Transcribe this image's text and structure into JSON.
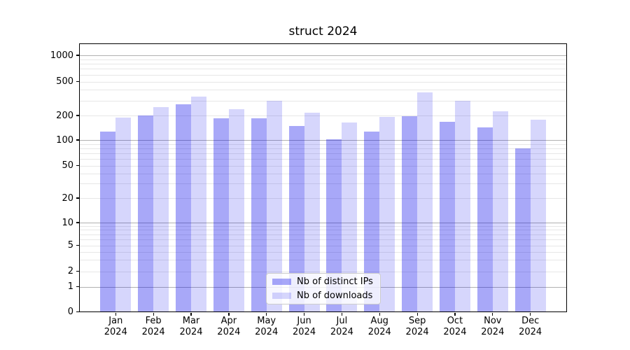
{
  "chart_data": {
    "type": "bar",
    "title": "struct 2024",
    "x_tick_year": "2024",
    "months": [
      "Jan",
      "Feb",
      "Mar",
      "Apr",
      "May",
      "Jun",
      "Jul",
      "Aug",
      "Sep",
      "Oct",
      "Nov",
      "Dec"
    ],
    "y_ticks": [
      0,
      1,
      2,
      5,
      10,
      20,
      50,
      100,
      200,
      500,
      1000
    ],
    "y_scale": "symlog",
    "ylim": [
      0,
      1450
    ],
    "grid": true,
    "legend_position": "lower center",
    "series": [
      {
        "name": "Nb of distinct IPs",
        "color": "rgba(0,0,235,0.34)",
        "values": [
          126,
          200,
          272,
          184,
          186,
          148,
          103,
          128,
          198,
          167,
          142,
          79
        ]
      },
      {
        "name": "Nb of downloads",
        "color": "rgba(0,0,235,0.16)",
        "values": [
          190,
          249,
          330,
          236,
          296,
          216,
          164,
          192,
          370,
          297,
          222,
          178
        ]
      }
    ],
    "colors": {
      "major_grid": "#b0b0b0",
      "minor_grid": "#e7e7e7",
      "spine": "#000000",
      "background": "#ffffff"
    }
  }
}
